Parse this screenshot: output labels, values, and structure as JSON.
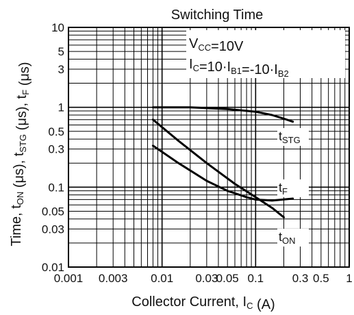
{
  "chart_data": {
    "type": "line",
    "title": "Switching Time",
    "xlabel": {
      "main": "Collector Current, I",
      "sub": "C",
      "unit": " (A)"
    },
    "ylabel": {
      "parts": [
        {
          "t": "Time, t",
          "sub": false
        },
        {
          "t": "ON",
          "sub": true
        },
        {
          "t": " (μs), t",
          "sub": false
        },
        {
          "t": "STG",
          "sub": true
        },
        {
          "t": " (μs), t",
          "sub": false
        },
        {
          "t": "F",
          "sub": true
        },
        {
          "t": " (μs)",
          "sub": false
        }
      ]
    },
    "x_scale": "log",
    "y_scale": "log",
    "xlim": [
      0.001,
      1
    ],
    "ylim": [
      0.01,
      10
    ],
    "x_ticks": [
      {
        "v": 0.001,
        "label": "0.001"
      },
      {
        "v": 0.003,
        "label": "0.003"
      },
      {
        "v": 0.01,
        "label": "0.01"
      },
      {
        "v": 0.03,
        "label": "0.03"
      },
      {
        "v": 0.05,
        "label": "0.05"
      },
      {
        "v": 0.1,
        "label": "0.1"
      },
      {
        "v": 0.3,
        "label": "0.3"
      },
      {
        "v": 0.5,
        "label": "0.5"
      },
      {
        "v": 1,
        "label": "1"
      }
    ],
    "y_ticks": [
      {
        "v": 10,
        "label": "10"
      },
      {
        "v": 5,
        "label": "5"
      },
      {
        "v": 3,
        "label": "3"
      },
      {
        "v": 1,
        "label": "1"
      },
      {
        "v": 0.5,
        "label": "0.5"
      },
      {
        "v": 0.3,
        "label": "0.3"
      },
      {
        "v": 0.1,
        "label": "0.1"
      },
      {
        "v": 0.05,
        "label": "0.05"
      },
      {
        "v": 0.03,
        "label": "0.03"
      },
      {
        "v": 0.01,
        "label": "0.01"
      }
    ],
    "grid": true,
    "conditions": [
      {
        "parts": [
          {
            "t": "V",
            "sub": false
          },
          {
            "t": "CC",
            "sub": true
          },
          {
            "t": "=10V",
            "sub": false
          }
        ]
      },
      {
        "parts": [
          {
            "t": "I",
            "sub": false
          },
          {
            "t": "C",
            "sub": true
          },
          {
            "t": "=10·I",
            "sub": false
          },
          {
            "t": "B1",
            "sub": true
          },
          {
            "t": "=-10·I",
            "sub": false
          },
          {
            "t": "B2",
            "sub": true
          }
        ]
      }
    ],
    "series": [
      {
        "label_main": "t",
        "label_sub": "STG",
        "x": [
          0.008,
          0.02,
          0.05,
          0.1,
          0.15,
          0.2,
          0.25
        ],
        "y": [
          1.0,
          1.0,
          0.95,
          0.88,
          0.8,
          0.72,
          0.66
        ]
      },
      {
        "label_main": "t",
        "label_sub": "F",
        "x": [
          0.008,
          0.015,
          0.03,
          0.05,
          0.08,
          0.1,
          0.15,
          0.25
        ],
        "y": [
          0.33,
          0.2,
          0.12,
          0.09,
          0.075,
          0.07,
          0.068,
          0.072
        ]
      },
      {
        "label_main": "t",
        "label_sub": "ON",
        "x": [
          0.008,
          0.015,
          0.03,
          0.06,
          0.1,
          0.15,
          0.2
        ],
        "y": [
          0.7,
          0.38,
          0.2,
          0.11,
          0.075,
          0.055,
          0.042
        ]
      }
    ]
  }
}
